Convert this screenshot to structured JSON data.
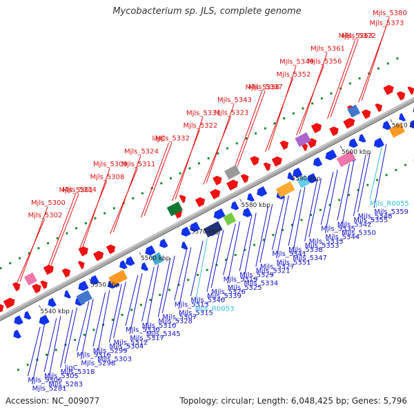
{
  "title": "Mycobacterium sp. JLS, complete genome",
  "footer": {
    "accession": "Accession: NC_009077",
    "topology": "Topology: circular; Length: 6,048,425 bp; Genes: 5,796"
  },
  "colors": {
    "top_label": "#dd1111",
    "bottom_label": "#1111cc",
    "rna_label": "#33bbdd",
    "backbone": "#a8a8a8",
    "backbone_line": "#6a6a6a",
    "dots": "#1a8a2a",
    "forward_gene": "#ee1111",
    "reverse_gene": "#1133ee"
  },
  "kbp_ticks": [
    "5540 kbp",
    "5550 kbp",
    "5560 kbp",
    "5570 kbp",
    "5580 kbp",
    "5590 kbp",
    "5600 kbp",
    "5610 kbp"
  ],
  "top_labels": [
    "Mjls_5380",
    "Mjls_5373",
    "Mjls_5372",
    "Mjls_5363",
    "Mjls_5361",
    "Mjls_5356",
    "Mjls_5349",
    "Mjls_5352",
    "Mjls_5337",
    "Mjls_5336",
    "Mjls_5343",
    "Mjls_5323",
    "Mjls_5331",
    "Mjls_5322",
    "Mjls_5332",
    "ligC",
    "Mjls_5324",
    "Mjls_5311",
    "Mjls_5309",
    "Mjls_5308",
    "Mjls_5314",
    "Mjls_5301",
    "Mjls_5300",
    "Mjls_5302"
  ],
  "bottom_labels": [
    "Mjls_R0055",
    "Mjls_5359",
    "Mjls_5355",
    "Mjls_5348",
    "Mjls_5342",
    "Mjls_5350",
    "Mjls_5335",
    "Mjls_5344",
    "Mjls_5353",
    "Mjls_5333",
    "Mjls_5338",
    "Mjls_5347",
    "Mjls_5341",
    "Mjls_5351",
    "Mjls_5321",
    "Mjls_5327",
    "Mjls_5329",
    "Mjls_5334",
    "Mjls_5319",
    "Mjls_5325",
    "Mjls_5339",
    "Mjls_5326",
    "Mjls_5340",
    "Mjls_R0053",
    "Mjls_5313",
    "Mjls_5315",
    "Mjls_5328",
    "Mjls_5307",
    "Mjls_5310",
    "Mjls_5345",
    "Mjls_5330",
    "Mjls_5317",
    "Mjls_5304",
    "Mjls_5312",
    "Mjls_5299",
    "Mjls_5303",
    "Mjls_5316",
    "Mjls_5298",
    "Mjls_5318",
    "ligC",
    "Mjls_5305",
    "Mjls_5283",
    "Mjls_5306",
    "Mjls_5281"
  ]
}
